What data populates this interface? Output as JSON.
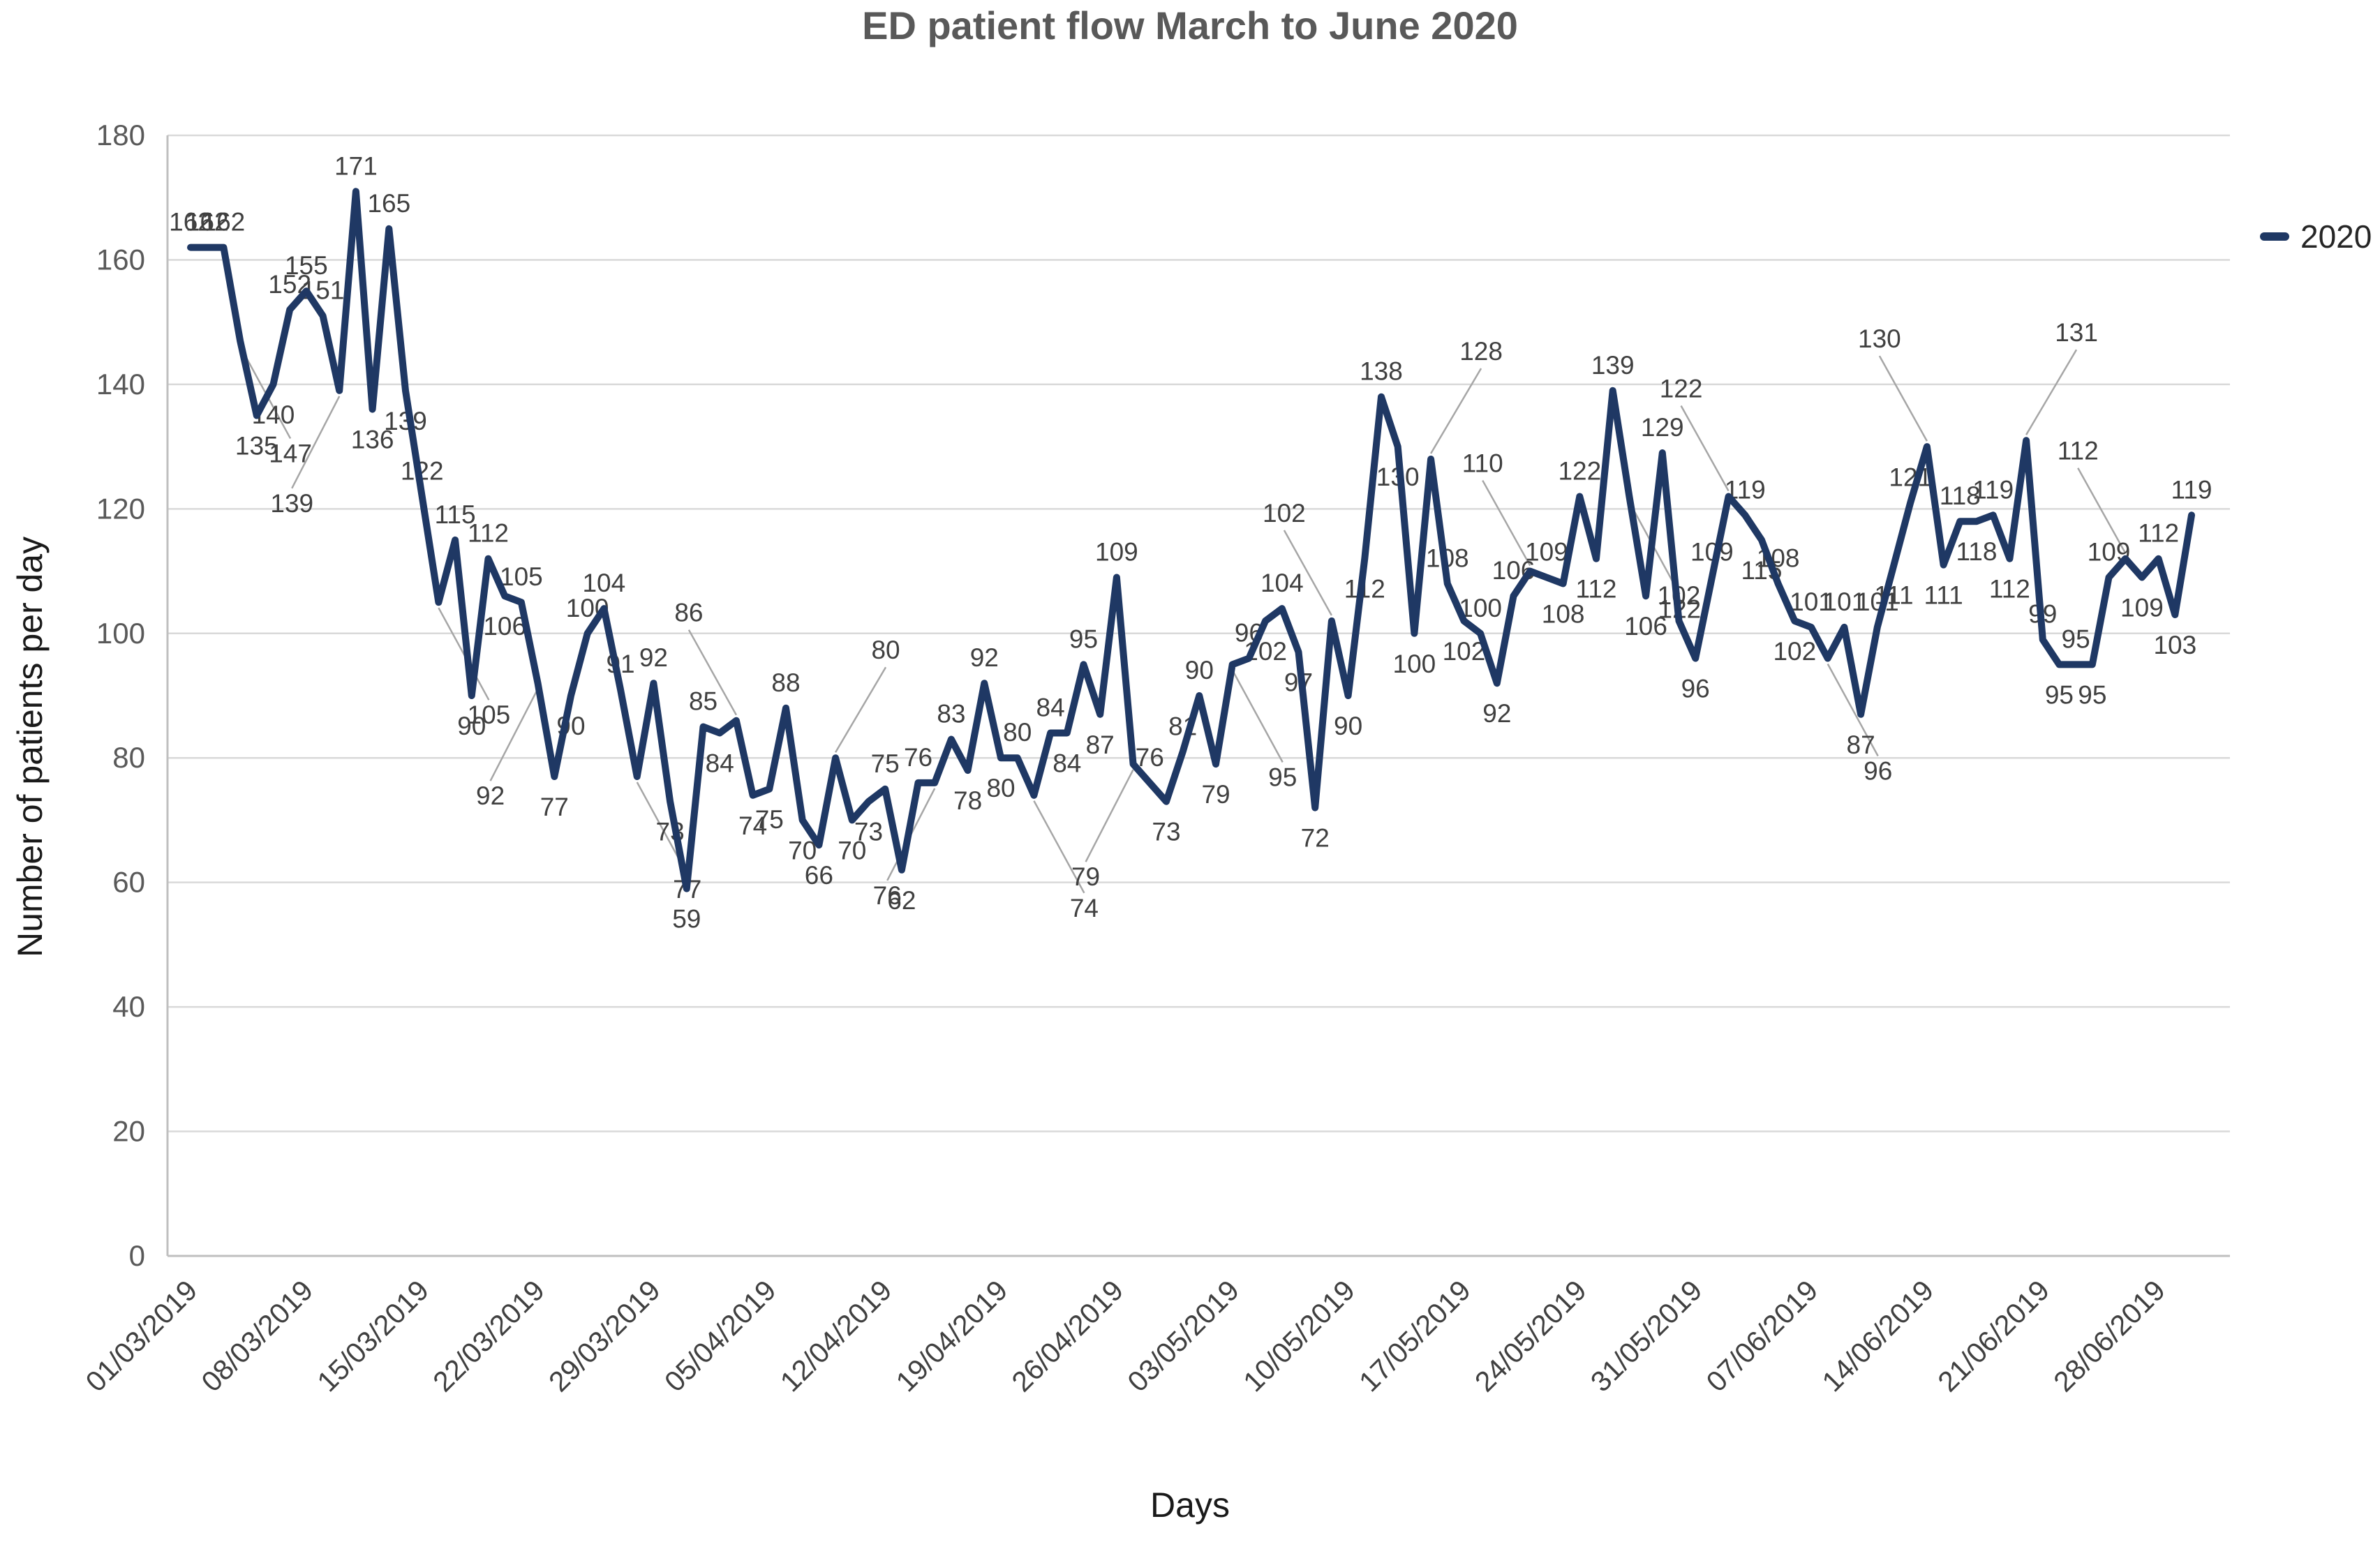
{
  "title": "ED patient flow March to June 2020",
  "legend": {
    "label": "2020"
  },
  "axes": {
    "x_label": "Days",
    "y_label": "Number of patients per day"
  },
  "chart_data": {
    "type": "line",
    "title": "ED patient flow March to June 2020",
    "xlabel": "Days",
    "ylabel": "Number of patients per day",
    "ylim": [
      0,
      180
    ],
    "ytick_step": 20,
    "grid": true,
    "legend_position": "right",
    "data_labels": true,
    "x_tick_labels": [
      "01/03/2019",
      "08/03/2019",
      "15/03/2019",
      "22/03/2019",
      "29/03/2019",
      "05/04/2019",
      "12/04/2019",
      "19/04/2019",
      "26/04/2019",
      "03/05/2019",
      "10/05/2019",
      "17/05/2019",
      "24/05/2019",
      "31/05/2019",
      "07/06/2019",
      "14/06/2019",
      "21/06/2019",
      "28/06/2019"
    ],
    "x_tick_day_index": [
      0,
      7,
      14,
      21,
      28,
      35,
      42,
      49,
      56,
      63,
      70,
      77,
      84,
      91,
      98,
      105,
      112,
      119
    ],
    "series": [
      {
        "name": "2020",
        "color": "#1F3864",
        "values": [
          162,
          162,
          162,
          147,
          135,
          140,
          152,
          155,
          151,
          139,
          171,
          136,
          165,
          139,
          122,
          105,
          115,
          90,
          112,
          106,
          105,
          92,
          77,
          90,
          100,
          104,
          91,
          77,
          92,
          73,
          59,
          85,
          84,
          86,
          74,
          75,
          88,
          70,
          66,
          80,
          70,
          73,
          75,
          62,
          76,
          76,
          83,
          78,
          92,
          80,
          80,
          74,
          84,
          84,
          95,
          87,
          109,
          79,
          76,
          73,
          81,
          90,
          79,
          95,
          96,
          102,
          104,
          97,
          72,
          102,
          90,
          112,
          138,
          130,
          100,
          128,
          108,
          102,
          100,
          92,
          106,
          110,
          109,
          108,
          122,
          112,
          139,
          122,
          106,
          129,
          102,
          96,
          109,
          122,
          119,
          115,
          108,
          102,
          101,
          96,
          101,
          87,
          101,
          111,
          121,
          130,
          111,
          118,
          118,
          119,
          112,
          131,
          99,
          95,
          95,
          95,
          109,
          112,
          109,
          112,
          103,
          119
        ]
      }
    ]
  },
  "style_colors": {
    "line": "#1F3864",
    "gridline": "#D9D9D9",
    "axis_line": "#BFBFBF",
    "y_tick_text": "#595959",
    "x_tick_text": "#404040",
    "data_label_text": "#404040",
    "leader_line": "#A6A6A6"
  }
}
